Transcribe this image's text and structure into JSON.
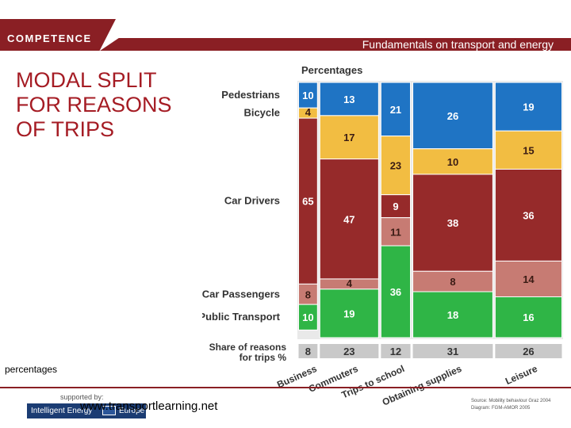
{
  "brand": "COMPETENCE",
  "header_title": "Fundamentals on transport and energy",
  "slide_title": "MODAL SPLIT FOR REASONS OF TRIPS",
  "caption": "percentages",
  "supported_by": "supported by:",
  "logo_text": "Intelligent Energy",
  "logo_suffix": "Europe",
  "website": "www.transportlearning.net",
  "source_lines": [
    "Source: Mobility behaviour Graz 2004",
    "Diagram: FGM-AMOR 2005"
  ],
  "chart_data": {
    "type": "bar",
    "subtype": "variable-width stacked (marimekko)",
    "title": "Percentages",
    "categories": [
      "Business",
      "Commuters",
      "Trips to school",
      "Obtaining supplies",
      "Leisure"
    ],
    "share_label": "Share of reasons for trips %",
    "share": [
      8,
      23,
      12,
      31,
      26
    ],
    "series": [
      {
        "name": "Pedestrians",
        "color": "#1f74c4",
        "values": [
          10,
          13,
          21,
          26,
          19
        ]
      },
      {
        "name": "Bicycle",
        "color": "#f2bd42",
        "values": [
          4,
          17,
          23,
          10,
          15
        ]
      },
      {
        "name": "Car Drivers",
        "color": "#962a2a",
        "values": [
          65,
          47,
          9,
          38,
          36
        ]
      },
      {
        "name": "Car Passengers",
        "color": "#c77b73",
        "values": [
          8,
          4,
          11,
          8,
          14
        ]
      },
      {
        "name": "Public Transport",
        "color": "#2fb546",
        "values": [
          10,
          19,
          36,
          18,
          16
        ]
      }
    ],
    "ylim": [
      0,
      100
    ]
  }
}
